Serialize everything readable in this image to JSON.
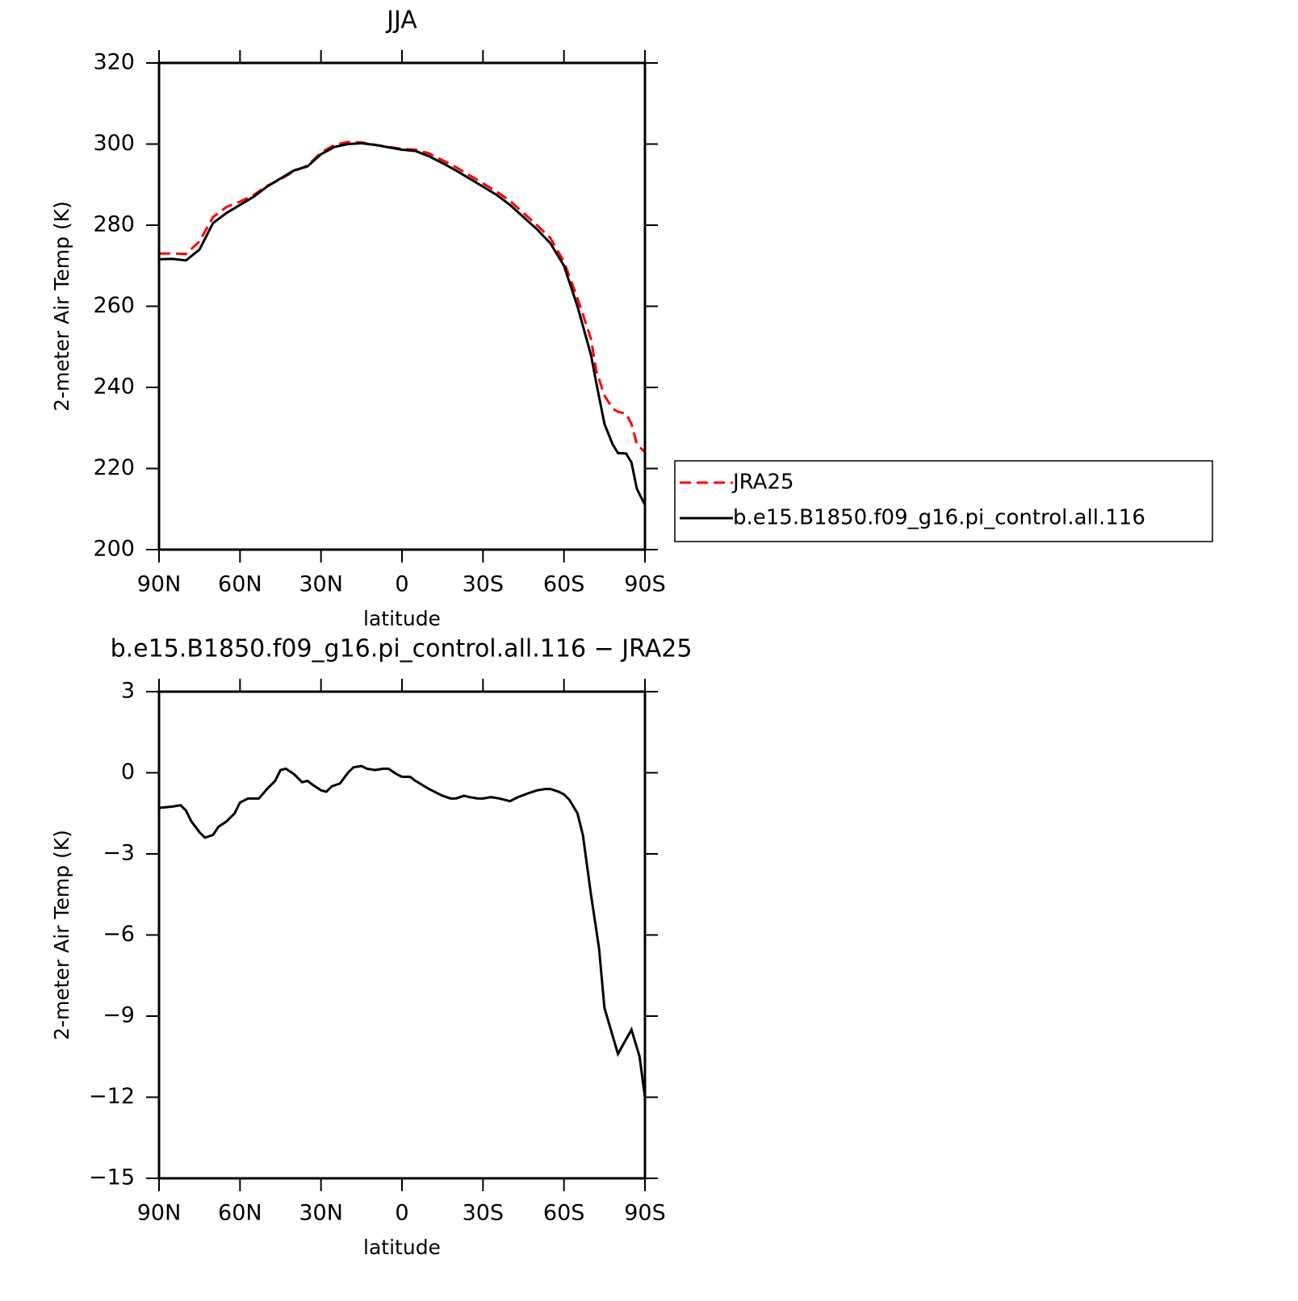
{
  "chart_data": [
    {
      "type": "line",
      "title": "JJA",
      "x_label": "latitude",
      "y_label": "2-meter Air Temp (K)",
      "x": [
        90,
        85,
        80,
        75,
        70,
        65,
        60,
        55,
        50,
        45,
        40,
        35,
        30,
        25,
        20,
        15,
        10,
        5,
        0,
        -5,
        -10,
        -15,
        -20,
        -25,
        -30,
        -35,
        -40,
        -45,
        -50,
        -55,
        -60,
        -65,
        -70,
        -72,
        -75,
        -78,
        -80,
        -83,
        -85,
        -87,
        -90
      ],
      "series": [
        {
          "name": "JRA25",
          "color": "#ff0000",
          "dash": true,
          "values": [
            273,
            273,
            272.9,
            276,
            282,
            284.5,
            285.8,
            287.4,
            289.7,
            291.3,
            293.3,
            294.7,
            297.9,
            299.8,
            300.5,
            300.4,
            299.8,
            299.3,
            298.8,
            298.6,
            297.7,
            296,
            294.3,
            292.3,
            290.3,
            288.3,
            286,
            283,
            280,
            276.8,
            271,
            262,
            252,
            244,
            238,
            234.8,
            234,
            233.5,
            231,
            226,
            224
          ]
        },
        {
          "name": "b.e15.B1850.f09_g16.pi_control.all.116",
          "color": "#000000",
          "dash": false,
          "values": [
            271.6,
            271.7,
            271.3,
            274,
            280.5,
            283,
            285,
            287,
            289.5,
            291.5,
            293.5,
            294.5,
            297.5,
            299.3,
            300,
            300.2,
            299.8,
            299.2,
            298.6,
            298.3,
            297,
            295.3,
            293.5,
            291.5,
            289.5,
            287.5,
            285,
            282,
            279,
            275.5,
            270,
            260,
            248,
            241,
            231,
            226,
            223.8,
            223.7,
            221.5,
            215,
            211
          ]
        }
      ],
      "xlim": [
        90,
        -90
      ],
      "xticks": [
        {
          "value": 90,
          "label": "90N"
        },
        {
          "value": 60,
          "label": "60N"
        },
        {
          "value": 30,
          "label": "30N"
        },
        0,
        {
          "value": -30,
          "label": "30S"
        },
        {
          "value": -60,
          "label": "60S"
        },
        {
          "value": -90,
          "label": "90S"
        }
      ],
      "ylim": [
        200,
        320
      ],
      "yticks": [
        200,
        220,
        240,
        260,
        280,
        300,
        320
      ],
      "legend": "right"
    },
    {
      "type": "line",
      "title": "b.e15.B1850.f09_g16.pi_control.all.116 − JRA25",
      "x_label": "latitude",
      "y_label": "2-meter Air Temp (K)",
      "x": [
        90,
        85,
        82,
        80,
        78,
        75,
        73,
        70,
        68,
        65,
        62,
        60,
        57,
        53,
        50,
        47,
        45,
        43,
        40,
        37,
        35,
        33,
        30,
        28,
        26,
        23,
        20,
        18,
        15,
        13,
        10,
        7,
        5,
        2,
        0,
        -3,
        -5,
        -10,
        -15,
        -18,
        -20,
        -23,
        -25,
        -28,
        -30,
        -33,
        -36,
        -40,
        -43,
        -47,
        -50,
        -53,
        -55,
        -58,
        -60,
        -62,
        -65,
        -67,
        -70,
        -73,
        -75,
        -80,
        -85,
        -88,
        -90
      ],
      "values": [
        -1.3,
        -1.25,
        -1.2,
        -1.4,
        -1.8,
        -2.2,
        -2.4,
        -2.3,
        -2.0,
        -1.8,
        -1.5,
        -1.1,
        -0.95,
        -0.95,
        -0.6,
        -0.3,
        0.1,
        0.15,
        -0.05,
        -0.35,
        -0.3,
        -0.45,
        -0.65,
        -0.7,
        -0.5,
        -0.4,
        0,
        0.2,
        0.25,
        0.15,
        0.1,
        0.15,
        0.15,
        -0.05,
        -0.15,
        -0.15,
        -0.3,
        -0.6,
        -0.85,
        -0.95,
        -0.95,
        -0.85,
        -0.9,
        -0.95,
        -0.95,
        -0.9,
        -0.95,
        -1.05,
        -0.9,
        -0.75,
        -0.65,
        -0.6,
        -0.6,
        -0.7,
        -0.8,
        -1.0,
        -1.5,
        -2.3,
        -4.5,
        -6.5,
        -8.7,
        -10.4,
        -9.5,
        -10.5,
        -12
      ],
      "color": "#000000",
      "xlim": [
        90,
        -90
      ],
      "xticks": [
        {
          "value": 90,
          "label": "90N"
        },
        {
          "value": 60,
          "label": "60N"
        },
        {
          "value": 30,
          "label": "30N"
        },
        0,
        {
          "value": -30,
          "label": "30S"
        },
        {
          "value": -60,
          "label": "60S"
        },
        {
          "value": -90,
          "label": "90S"
        }
      ],
      "ylim": [
        -15,
        3
      ],
      "yticks": [
        {
          "value": -15,
          "label": "−15"
        },
        {
          "value": -12,
          "label": "−12"
        },
        {
          "value": -9,
          "label": "−9"
        },
        {
          "value": -6,
          "label": "−6"
        },
        {
          "value": -3,
          "label": "−3"
        },
        0,
        3
      ]
    }
  ]
}
